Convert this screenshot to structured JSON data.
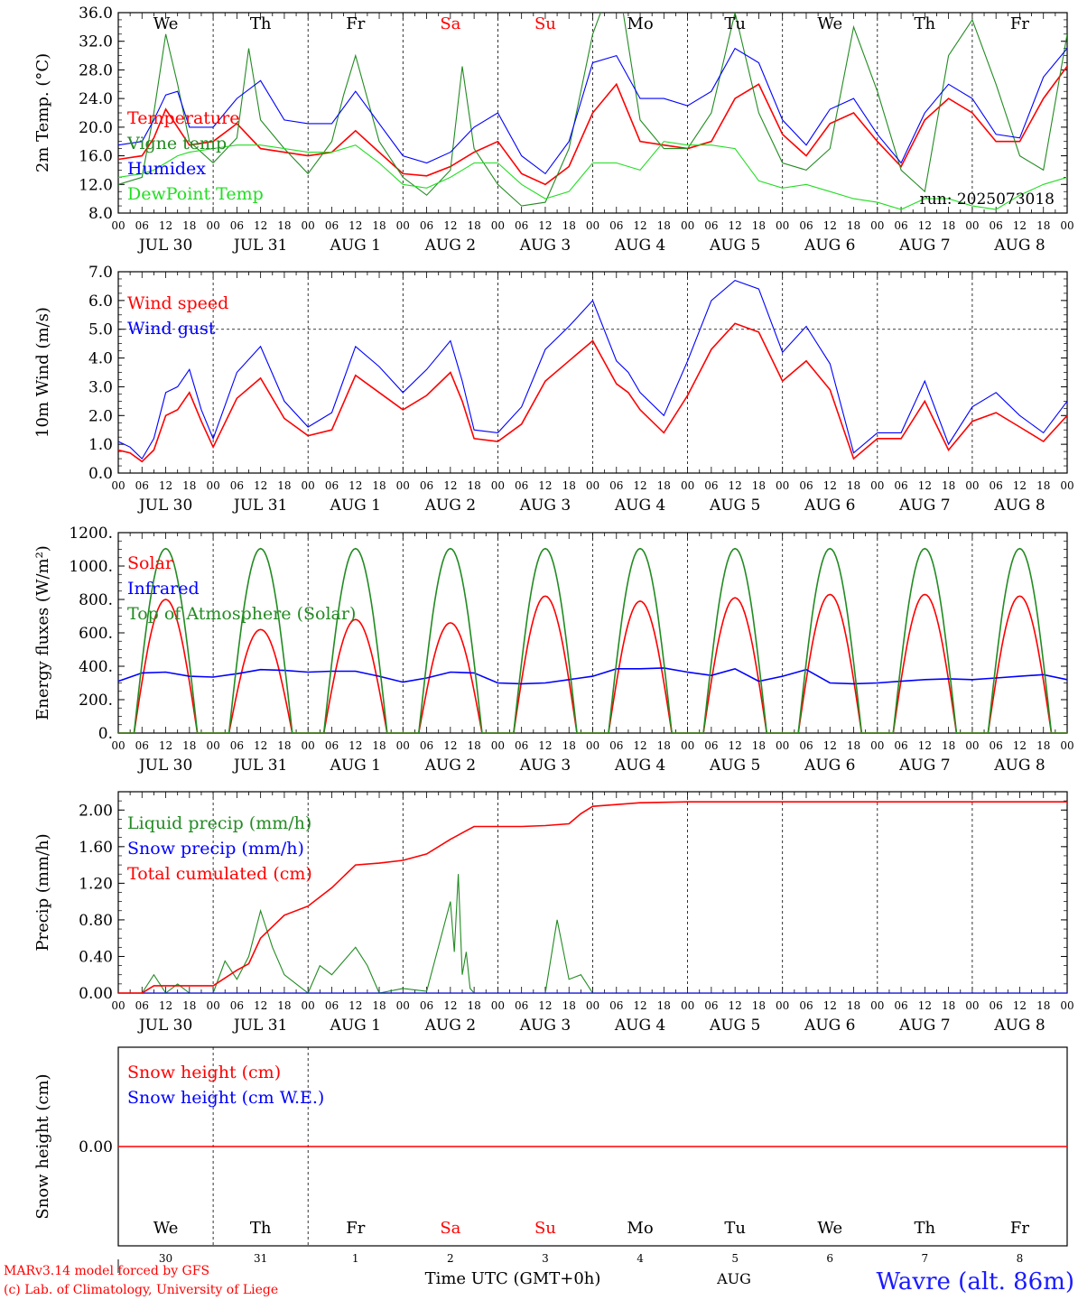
{
  "colors": {
    "red": "#ff0000",
    "blue": "#0000ff",
    "green": "#228b22",
    "lightgreen": "#22dd22",
    "black": "#000000"
  },
  "x_axis": {
    "hour_ticks": [
      "00",
      "06",
      "12",
      "18"
    ],
    "date_labels": [
      "JUL 30",
      "JUL 31",
      "AUG  1",
      "AUG  2",
      "AUG  3",
      "AUG  4",
      "AUG  5",
      "AUG  6",
      "AUG  7",
      "AUG  8"
    ],
    "weekdays": [
      "We",
      "Th",
      "Fr",
      "Sa",
      "Su",
      "Mo",
      "Tu",
      "We",
      "Th",
      "Fr"
    ],
    "weekend_indices": [
      3,
      4
    ],
    "day_numbers": [
      "30",
      "31",
      "1",
      "2",
      "3",
      "4",
      "5",
      "6",
      "7",
      "8"
    ],
    "month_label": "AUG",
    "time_label": "Time UTC (GMT+0h)"
  },
  "footer": {
    "model_line": "MARv3.14 model forced by GFS",
    "credit_line": "(c) Lab. of Climatology, University of Liege",
    "station": "Wavre (alt. 86m)"
  },
  "chart_data": [
    {
      "type": "line",
      "panel": "temperature",
      "ylabel": "2m Temp. (°C)",
      "ylim": [
        8,
        36
      ],
      "yticks": [
        "8.0",
        "12.0",
        "16.0",
        "20.0",
        "24.0",
        "28.0",
        "32.0",
        "36.0"
      ],
      "run_label": "run: 2025073018",
      "x_unit": "hours since 2025-07-30 00 UTC",
      "series": [
        {
          "name": "Temperature",
          "color": "red",
          "x": [
            0,
            6,
            9,
            12,
            15,
            18,
            24,
            30,
            36,
            42,
            48,
            54,
            60,
            66,
            72,
            78,
            84,
            90,
            96,
            102,
            108,
            114,
            120,
            126,
            132,
            138,
            144,
            150,
            156,
            162,
            168,
            174,
            180,
            186,
            192,
            198,
            204,
            210,
            216,
            222,
            228,
            234,
            240
          ],
          "y": [
            15.5,
            16,
            18.5,
            22.5,
            20,
            17.5,
            18,
            20.5,
            17,
            16.5,
            16,
            16.5,
            19.5,
            16.5,
            13.5,
            13.2,
            14.5,
            16.5,
            18,
            13.5,
            12,
            14.5,
            22,
            26,
            18,
            17.5,
            17,
            18,
            24,
            26,
            19,
            16,
            20.5,
            22,
            18,
            14.5,
            21,
            24,
            22,
            18,
            18,
            24,
            28.5
          ]
        },
        {
          "name": "Vigne temp",
          "color": "green",
          "x": [
            0,
            6,
            9,
            12,
            15,
            18,
            24,
            30,
            33,
            36,
            42,
            48,
            54,
            57,
            60,
            66,
            72,
            78,
            84,
            87,
            90,
            96,
            102,
            108,
            114,
            120,
            126,
            132,
            138,
            144,
            150,
            156,
            162,
            168,
            174,
            180,
            186,
            192,
            198,
            204,
            210,
            216,
            222,
            228,
            234,
            240
          ],
          "y": [
            12,
            13,
            22,
            33,
            26,
            18,
            15,
            18.5,
            31,
            21,
            17,
            13.5,
            18,
            24.5,
            30,
            18,
            13,
            10.5,
            14,
            28.5,
            17,
            12,
            9,
            9.5,
            17,
            33,
            42,
            21,
            17,
            17,
            22,
            36,
            22,
            15,
            14,
            17,
            34,
            25,
            14,
            11,
            30,
            35,
            26,
            16,
            14,
            33
          ]
        },
        {
          "name": "Humidex",
          "color": "blue",
          "x": [
            0,
            6,
            9,
            12,
            15,
            18,
            24,
            30,
            36,
            42,
            48,
            54,
            60,
            66,
            72,
            78,
            84,
            90,
            96,
            102,
            108,
            114,
            120,
            126,
            132,
            138,
            144,
            150,
            156,
            162,
            168,
            174,
            180,
            186,
            192,
            198,
            204,
            210,
            216,
            222,
            228,
            234,
            240
          ],
          "y": [
            17.5,
            18,
            21,
            24.5,
            25,
            20,
            20,
            24,
            26.5,
            21,
            20.5,
            20.5,
            25,
            20.5,
            16,
            15,
            16.5,
            20,
            22,
            16,
            13.5,
            18,
            29,
            30,
            24,
            24,
            23,
            25,
            31,
            29,
            21,
            17.5,
            22.5,
            24,
            19,
            15,
            22,
            26,
            24,
            19,
            18.5,
            27,
            31
          ]
        },
        {
          "name": "DewPoint Temp",
          "color": "lightgreen",
          "x": [
            0,
            6,
            9,
            12,
            15,
            18,
            24,
            30,
            36,
            42,
            48,
            54,
            60,
            66,
            72,
            78,
            84,
            90,
            96,
            102,
            108,
            114,
            120,
            126,
            132,
            138,
            144,
            150,
            156,
            162,
            168,
            174,
            180,
            186,
            192,
            198,
            204,
            210,
            216,
            222,
            228,
            234,
            240
          ],
          "y": [
            13,
            13.5,
            14,
            15,
            16,
            16.5,
            17,
            17.5,
            17.5,
            17,
            16.5,
            16.5,
            17.5,
            15,
            12,
            11.5,
            13,
            15,
            15,
            12,
            10,
            11,
            15,
            15,
            14,
            18,
            17.5,
            17.5,
            17,
            12.5,
            11.5,
            12,
            11,
            10,
            9.5,
            8.5,
            10,
            10,
            9,
            8.5,
            10.5,
            12,
            13
          ]
        }
      ]
    },
    {
      "type": "line",
      "panel": "wind",
      "ylabel": "10m Wind (m/s)",
      "ylim": [
        0,
        7
      ],
      "yticks": [
        "0.0",
        "1.0",
        "2.0",
        "3.0",
        "4.0",
        "5.0",
        "6.0",
        "7.0"
      ],
      "reference_line": 5,
      "series": [
        {
          "name": "Wind speed",
          "color": "red",
          "x": [
            0,
            3,
            6,
            9,
            12,
            15,
            18,
            21,
            24,
            30,
            36,
            42,
            48,
            54,
            60,
            66,
            72,
            78,
            84,
            87,
            90,
            96,
            102,
            108,
            114,
            120,
            126,
            129,
            132,
            138,
            144,
            150,
            156,
            162,
            168,
            174,
            180,
            186,
            192,
            198,
            204,
            210,
            216,
            222,
            228,
            234,
            240
          ],
          "y": [
            0.8,
            0.7,
            0.4,
            0.8,
            2.0,
            2.2,
            2.8,
            1.8,
            0.9,
            2.6,
            3.3,
            1.9,
            1.3,
            1.5,
            3.4,
            2.8,
            2.2,
            2.7,
            3.5,
            2.5,
            1.2,
            1.1,
            1.7,
            3.2,
            3.9,
            4.6,
            3.1,
            2.8,
            2.2,
            1.4,
            2.7,
            4.3,
            5.2,
            4.9,
            3.2,
            3.9,
            2.9,
            0.5,
            1.2,
            1.2,
            2.5,
            0.8,
            1.8,
            2.1,
            1.6,
            1.1,
            2.0
          ]
        },
        {
          "name": "Wind gust",
          "color": "blue",
          "x": [
            0,
            3,
            6,
            9,
            12,
            15,
            18,
            21,
            24,
            30,
            36,
            42,
            48,
            54,
            60,
            66,
            72,
            78,
            84,
            87,
            90,
            96,
            102,
            108,
            114,
            120,
            126,
            129,
            132,
            138,
            144,
            150,
            156,
            162,
            168,
            174,
            180,
            186,
            192,
            198,
            204,
            210,
            216,
            222,
            228,
            234,
            240
          ],
          "y": [
            1.1,
            0.9,
            0.5,
            1.2,
            2.8,
            3.0,
            3.6,
            2.2,
            1.2,
            3.5,
            4.4,
            2.5,
            1.6,
            2.1,
            4.4,
            3.7,
            2.8,
            3.6,
            4.6,
            3.2,
            1.5,
            1.4,
            2.3,
            4.3,
            5.1,
            6.0,
            3.9,
            3.5,
            2.8,
            2.0,
            3.9,
            6.0,
            6.7,
            6.4,
            4.2,
            5.1,
            3.8,
            0.7,
            1.4,
            1.4,
            3.2,
            1.0,
            2.3,
            2.8,
            2.0,
            1.4,
            2.5
          ]
        }
      ]
    },
    {
      "type": "line",
      "panel": "energy",
      "ylabel": "Energy fluxes (W/m²)",
      "ylim": [
        0,
        1200
      ],
      "yticks": [
        "0.",
        "200.",
        "400.",
        "600.",
        "800.",
        "1000.",
        "1200."
      ],
      "series": [
        {
          "name": "Solar",
          "color": "red"
        },
        {
          "name": "Infrared",
          "color": "blue",
          "x": [
            0,
            6,
            12,
            18,
            24,
            30,
            36,
            42,
            48,
            54,
            60,
            66,
            72,
            78,
            84,
            90,
            96,
            102,
            108,
            114,
            120,
            126,
            132,
            138,
            144,
            150,
            156,
            162,
            168,
            174,
            180,
            186,
            192,
            198,
            204,
            210,
            216,
            222,
            228,
            234,
            240
          ],
          "y": [
            310,
            360,
            365,
            340,
            335,
            355,
            380,
            375,
            365,
            370,
            370,
            340,
            305,
            330,
            365,
            360,
            300,
            295,
            300,
            320,
            340,
            385,
            385,
            390,
            365,
            345,
            385,
            310,
            340,
            380,
            300,
            295,
            300,
            310,
            320,
            325,
            320,
            330,
            340,
            350,
            320
          ]
        },
        {
          "name": "Top of Atmosphere (Solar)",
          "color": "green",
          "toa_peak": 1105,
          "sunrise_hour": 4,
          "sunset_hour": 20
        }
      ],
      "solar_daily_peaks": [
        800,
        620,
        680,
        660,
        820,
        790,
        810,
        830,
        830,
        820
      ]
    },
    {
      "type": "line",
      "panel": "precip",
      "ylabel": "Precip (mm/h)",
      "ylim": [
        0,
        2.2
      ],
      "yticks": [
        "0.00",
        "0.40",
        "0.80",
        "1.20",
        "1.60",
        "2.00"
      ],
      "series": [
        {
          "name": "Liquid precip (mm/h)",
          "color": "green",
          "x": [
            0,
            6,
            9,
            12,
            15,
            18,
            24,
            27,
            30,
            33,
            36,
            39,
            42,
            45,
            48,
            51,
            54,
            57,
            60,
            63,
            66,
            72,
            78,
            84,
            85,
            86,
            87,
            88,
            89,
            90,
            96,
            102,
            108,
            111,
            114,
            117,
            120,
            126,
            132,
            240
          ],
          "y": [
            0,
            0,
            0.2,
            0,
            0.1,
            0,
            0,
            0.35,
            0.15,
            0.4,
            0.9,
            0.5,
            0.2,
            0.1,
            0,
            0.3,
            0.2,
            0.35,
            0.5,
            0.3,
            0,
            0.05,
            0.02,
            1.0,
            0.45,
            1.3,
            0.2,
            0.45,
            0.05,
            0,
            0,
            0,
            0,
            0.8,
            0.15,
            0.2,
            0,
            0,
            0,
            0
          ]
        },
        {
          "name": "Snow precip (mm/h)",
          "color": "blue",
          "x": [
            0,
            240
          ],
          "y": [
            0,
            0
          ]
        },
        {
          "name": "Total cumulated (cm)",
          "color": "red",
          "x": [
            0,
            6,
            9,
            12,
            18,
            24,
            30,
            33,
            36,
            42,
            48,
            54,
            60,
            66,
            72,
            78,
            84,
            87,
            90,
            96,
            102,
            108,
            114,
            117,
            120,
            132,
            144,
            240
          ],
          "y": [
            0,
            0,
            0.08,
            0.08,
            0.08,
            0.08,
            0.25,
            0.32,
            0.6,
            0.85,
            0.95,
            1.15,
            1.4,
            1.42,
            1.45,
            1.52,
            1.68,
            1.75,
            1.82,
            1.82,
            1.82,
            1.83,
            1.85,
            1.96,
            2.04,
            2.08,
            2.09,
            2.09
          ]
        }
      ]
    },
    {
      "type": "line",
      "panel": "snow",
      "ylabel": "Snow height (cm)",
      "ylim": [
        -1,
        1
      ],
      "yticks": [
        "0.00"
      ],
      "series": [
        {
          "name": "Snow height (cm)",
          "color": "red",
          "x": [
            0,
            240
          ],
          "y": [
            0,
            0
          ]
        },
        {
          "name": "Snow height (cm W.E.)",
          "color": "blue"
        }
      ]
    }
  ]
}
